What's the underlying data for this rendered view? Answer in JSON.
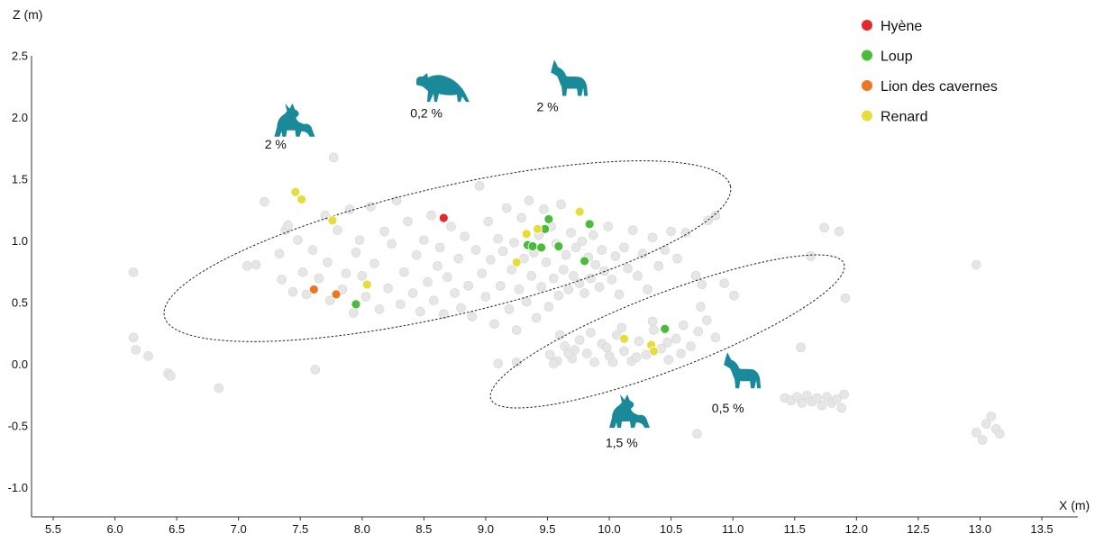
{
  "chart_data": {
    "type": "scatter",
    "xlabel": "X (m)",
    "ylabel": "Z (m)",
    "xlim": [
      5.35,
      13.75
    ],
    "ylim": [
      -1.22,
      2.55
    ],
    "x_ticks": [
      {
        "value": 5.5,
        "label": "5.5"
      },
      {
        "value": 6.0,
        "label": "6.0"
      },
      {
        "value": 6.5,
        "label": "6.5"
      },
      {
        "value": 7.0,
        "label": "7.0"
      },
      {
        "value": 7.5,
        "label": "7.5"
      },
      {
        "value": 8.0,
        "label": "8.0"
      },
      {
        "value": 8.5,
        "label": "8.5"
      },
      {
        "value": 9.0,
        "label": "9.0"
      },
      {
        "value": 9.5,
        "label": "9.5"
      },
      {
        "value": 10.0,
        "label": "10.0"
      },
      {
        "value": 10.5,
        "label": "10.5"
      },
      {
        "value": 11.0,
        "label": "11.0"
      },
      {
        "value": 11.5,
        "label": "11.5"
      },
      {
        "value": 12.0,
        "label": "12.0"
      },
      {
        "value": 12.5,
        "label": "12.5"
      },
      {
        "value": 13.0,
        "label": "13.0"
      },
      {
        "value": 13.5,
        "label": "13.5"
      }
    ],
    "y_ticks": [
      {
        "value": 2.5,
        "label": "2.5"
      },
      {
        "value": 2.0,
        "label": "2.0"
      },
      {
        "value": 1.5,
        "label": "1.5"
      },
      {
        "value": 1.0,
        "label": "1.0"
      },
      {
        "value": 0.5,
        "label": "0.5"
      },
      {
        "value": 0.0,
        "label": "0.0"
      },
      {
        "value": -0.5,
        "label": "-0.5"
      },
      {
        "value": -1.0,
        "label": "-1.0"
      }
    ],
    "grid": false,
    "legend_position": "top-right",
    "series": [
      {
        "name": "Hyène",
        "color": "#e02b2b",
        "points": [
          [
            8.66,
            1.19
          ]
        ]
      },
      {
        "name": "Loup",
        "color": "#4cba3a",
        "points": [
          [
            9.34,
            0.97
          ],
          [
            9.38,
            0.96
          ],
          [
            9.45,
            0.95
          ],
          [
            9.48,
            1.1
          ],
          [
            9.51,
            1.18
          ],
          [
            9.59,
            0.96
          ],
          [
            9.8,
            0.84
          ],
          [
            9.84,
            1.14
          ],
          [
            7.95,
            0.49
          ],
          [
            10.45,
            0.29
          ]
        ]
      },
      {
        "name": "Lion des cavernes",
        "color": "#ec7622",
        "points": [
          [
            7.61,
            0.61
          ],
          [
            7.79,
            0.57
          ]
        ]
      },
      {
        "name": "Renard",
        "color": "#e6dd3c",
        "points": [
          [
            7.46,
            1.4
          ],
          [
            7.51,
            1.34
          ],
          [
            7.76,
            1.17
          ],
          [
            8.04,
            0.65
          ],
          [
            9.25,
            0.83
          ],
          [
            9.33,
            1.06
          ],
          [
            9.42,
            1.1
          ],
          [
            9.76,
            1.24
          ],
          [
            10.12,
            0.21
          ],
          [
            10.34,
            0.16
          ],
          [
            10.36,
            0.11
          ]
        ]
      }
    ],
    "background_points": [
      [
        6.15,
        0.75
      ],
      [
        6.15,
        0.22
      ],
      [
        6.17,
        0.12
      ],
      [
        6.27,
        0.07
      ],
      [
        6.43,
        -0.07
      ],
      [
        6.45,
        -0.09
      ],
      [
        6.84,
        -0.19
      ],
      [
        7.07,
        0.8
      ],
      [
        7.14,
        0.81
      ],
      [
        7.21,
        1.32
      ],
      [
        7.33,
        0.9
      ],
      [
        7.35,
        0.69
      ],
      [
        7.38,
        1.09
      ],
      [
        7.4,
        1.13
      ],
      [
        7.44,
        0.59
      ],
      [
        7.48,
        1.01
      ],
      [
        7.52,
        0.75
      ],
      [
        7.55,
        0.57
      ],
      [
        7.6,
        0.93
      ],
      [
        7.62,
        -0.04
      ],
      [
        7.65,
        0.7
      ],
      [
        7.7,
        1.21
      ],
      [
        7.72,
        0.83
      ],
      [
        7.74,
        0.52
      ],
      [
        7.77,
        1.68
      ],
      [
        7.8,
        1.09
      ],
      [
        7.84,
        0.61
      ],
      [
        7.87,
        0.74
      ],
      [
        7.9,
        1.26
      ],
      [
        7.93,
        0.42
      ],
      [
        7.95,
        0.91
      ],
      [
        7.98,
        1.01
      ],
      [
        8.0,
        0.72
      ],
      [
        8.03,
        0.55
      ],
      [
        8.07,
        1.28
      ],
      [
        8.1,
        0.82
      ],
      [
        8.14,
        0.45
      ],
      [
        8.18,
        1.08
      ],
      [
        8.21,
        0.62
      ],
      [
        8.24,
        0.98
      ],
      [
        8.28,
        1.33
      ],
      [
        8.31,
        0.49
      ],
      [
        8.34,
        0.75
      ],
      [
        8.37,
        1.16
      ],
      [
        8.41,
        0.58
      ],
      [
        8.44,
        0.89
      ],
      [
        8.47,
        0.43
      ],
      [
        8.5,
        1.01
      ],
      [
        8.53,
        0.67
      ],
      [
        8.56,
        1.21
      ],
      [
        8.58,
        0.52
      ],
      [
        8.61,
        0.8
      ],
      [
        8.63,
        0.95
      ],
      [
        8.66,
        0.41
      ],
      [
        8.69,
        0.71
      ],
      [
        8.72,
        1.12
      ],
      [
        8.75,
        0.58
      ],
      [
        8.78,
        0.86
      ],
      [
        8.8,
        0.46
      ],
      [
        8.83,
        1.04
      ],
      [
        8.86,
        0.64
      ],
      [
        8.89,
        0.39
      ],
      [
        8.92,
        0.93
      ],
      [
        8.95,
        1.45
      ],
      [
        8.97,
        0.74
      ],
      [
        9.0,
        0.55
      ],
      [
        9.02,
        1.16
      ],
      [
        9.04,
        0.85
      ],
      [
        9.07,
        0.33
      ],
      [
        9.1,
        1.02
      ],
      [
        9.12,
        0.64
      ],
      [
        9.14,
        0.92
      ],
      [
        9.17,
        1.27
      ],
      [
        9.19,
        0.45
      ],
      [
        9.21,
        0.77
      ],
      [
        9.23,
        0.99
      ],
      [
        9.25,
        0.28
      ],
      [
        9.27,
        0.61
      ],
      [
        9.29,
        1.19
      ],
      [
        9.31,
        0.86
      ],
      [
        9.33,
        0.51
      ],
      [
        9.35,
        1.33
      ],
      [
        9.37,
        0.72
      ],
      [
        9.39,
        0.91
      ],
      [
        9.41,
        0.38
      ],
      [
        9.43,
        1.05
      ],
      [
        9.45,
        0.63
      ],
      [
        9.47,
        1.26
      ],
      [
        9.49,
        0.83
      ],
      [
        9.51,
        0.47
      ],
      [
        9.53,
        1.12
      ],
      [
        9.55,
        0.7
      ],
      [
        9.57,
        0.98
      ],
      [
        9.59,
        0.56
      ],
      [
        9.61,
        1.3
      ],
      [
        9.63,
        0.77
      ],
      [
        9.65,
        0.89
      ],
      [
        9.67,
        0.61
      ],
      [
        9.69,
        1.07
      ],
      [
        9.71,
        0.72
      ],
      [
        9.73,
        0.95
      ],
      [
        9.76,
        0.66
      ],
      [
        9.78,
        1.0
      ],
      [
        9.8,
        0.58
      ],
      [
        9.83,
        0.87
      ],
      [
        9.85,
        0.7
      ],
      [
        9.87,
        1.05
      ],
      [
        9.89,
        0.81
      ],
      [
        9.92,
        0.63
      ],
      [
        9.94,
        0.93
      ],
      [
        9.96,
        0.76
      ],
      [
        9.99,
        1.12
      ],
      [
        10.02,
        0.69
      ],
      [
        10.05,
        0.88
      ],
      [
        10.08,
        0.57
      ],
      [
        10.12,
        0.95
      ],
      [
        10.15,
        0.78
      ],
      [
        10.19,
        1.09
      ],
      [
        10.23,
        0.72
      ],
      [
        10.27,
        0.9
      ],
      [
        10.31,
        0.61
      ],
      [
        10.35,
        1.03
      ],
      [
        10.4,
        0.8
      ],
      [
        10.45,
        0.93
      ],
      [
        10.5,
        1.08
      ],
      [
        10.55,
        0.86
      ],
      [
        10.62,
        1.07
      ],
      [
        10.7,
        0.72
      ],
      [
        10.75,
        0.65
      ],
      [
        10.8,
        1.17
      ],
      [
        10.86,
        1.21
      ],
      [
        10.93,
        0.66
      ],
      [
        11.01,
        0.56
      ],
      [
        10.74,
        0.47
      ],
      [
        10.71,
        -0.56
      ],
      [
        9.1,
        0.01
      ],
      [
        9.25,
        0.02
      ],
      [
        9.52,
        0.08
      ],
      [
        9.58,
        0.03
      ],
      [
        9.64,
        0.15
      ],
      [
        9.7,
        0.05
      ],
      [
        9.76,
        0.2
      ],
      [
        9.82,
        0.09
      ],
      [
        9.88,
        0.02
      ],
      [
        9.94,
        0.17
      ],
      [
        10.0,
        0.07
      ],
      [
        10.06,
        0.24
      ],
      [
        10.12,
        0.11
      ],
      [
        10.18,
        0.03
      ],
      [
        10.24,
        0.19
      ],
      [
        10.3,
        0.08
      ],
      [
        10.36,
        0.28
      ],
      [
        10.42,
        0.13
      ],
      [
        10.48,
        0.04
      ],
      [
        10.54,
        0.21
      ],
      [
        10.6,
        0.32
      ],
      [
        10.66,
        0.15
      ],
      [
        10.72,
        0.27
      ],
      [
        10.79,
        0.36
      ],
      [
        10.86,
        0.22
      ],
      [
        9.6,
        0.24
      ],
      [
        9.72,
        0.12
      ],
      [
        9.85,
        0.26
      ],
      [
        9.98,
        0.14
      ],
      [
        10.1,
        0.3
      ],
      [
        10.22,
        0.06
      ],
      [
        10.35,
        0.35
      ],
      [
        10.47,
        0.18
      ],
      [
        10.58,
        0.09
      ],
      [
        9.55,
        0.01
      ],
      [
        9.67,
        0.09
      ],
      [
        10.03,
        0.02
      ],
      [
        11.42,
        -0.27
      ],
      [
        11.47,
        -0.29
      ],
      [
        11.52,
        -0.26
      ],
      [
        11.56,
        -0.31
      ],
      [
        11.6,
        -0.25
      ],
      [
        11.64,
        -0.3
      ],
      [
        11.68,
        -0.27
      ],
      [
        11.72,
        -0.33
      ],
      [
        11.76,
        -0.26
      ],
      [
        11.8,
        -0.31
      ],
      [
        11.84,
        -0.28
      ],
      [
        11.88,
        -0.35
      ],
      [
        11.9,
        -0.24
      ],
      [
        11.55,
        0.14
      ],
      [
        11.63,
        0.88
      ],
      [
        11.74,
        1.11
      ],
      [
        11.86,
        1.08
      ],
      [
        11.91,
        0.54
      ],
      [
        12.97,
        0.81
      ],
      [
        12.97,
        -0.55
      ],
      [
        13.02,
        -0.61
      ],
      [
        13.05,
        -0.48
      ],
      [
        13.09,
        -0.42
      ],
      [
        13.13,
        -0.52
      ],
      [
        13.16,
        -0.56
      ]
    ],
    "annotations": [
      {
        "label": "2 %",
        "x": 7.3,
        "y": 1.79
      },
      {
        "label": "0,2 %",
        "x": 8.52,
        "y": 2.04
      },
      {
        "label": "2 %",
        "x": 9.5,
        "y": 2.09
      },
      {
        "label": "0,5 %",
        "x": 10.96,
        "y": -0.35
      },
      {
        "label": "1,5 %",
        "x": 10.1,
        "y": -0.63
      }
    ],
    "ellipses": [
      {
        "cx": 8.69,
        "cy": 0.92,
        "rx": 2.35,
        "ry": 0.52,
        "angle_deg": -13
      },
      {
        "cx": 10.47,
        "cy": 0.27,
        "rx": 1.53,
        "ry": 0.31,
        "angle_deg": -21
      }
    ]
  },
  "icons": [
    {
      "name": "fox-icon",
      "x": 7.45,
      "y": 1.98
    },
    {
      "name": "hyena-icon",
      "x": 8.65,
      "y": 2.24
    },
    {
      "name": "wolf-icon",
      "x": 9.68,
      "y": 2.31
    },
    {
      "name": "wolf-icon",
      "x": 11.08,
      "y": -0.06
    },
    {
      "name": "fox-icon",
      "x": 10.16,
      "y": -0.38
    }
  ],
  "icon_color": "#1a8a9b",
  "background_point_color": "#e6e6e6"
}
